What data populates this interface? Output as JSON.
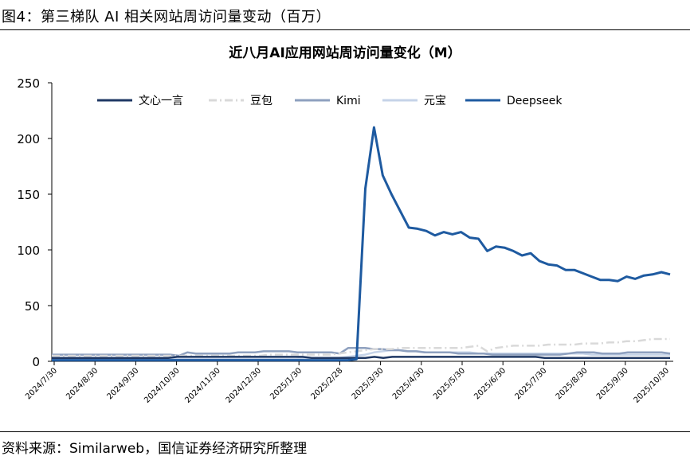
{
  "figure": {
    "title": "图4：第三梯队 AI 相关网站周访问量变动（百万）",
    "source": "资料来源：Similarweb，国信证券经济研究所整理"
  },
  "chart_data": {
    "type": "line",
    "title": "近八月AI应用网站周访问量变化（M）",
    "xlabel": "",
    "ylabel": "",
    "ylim": [
      0,
      250
    ],
    "yticks": [
      0,
      50,
      100,
      150,
      200,
      250
    ],
    "x_tick_labels": [
      "2024/7/30",
      "2024/8/30",
      "2024/9/30",
      "2024/10/30",
      "2024/11/30",
      "2024/12/30",
      "2025/1/30",
      "2025/2/28",
      "2025/3/30",
      "2025/4/30",
      "2025/5/30",
      "2025/6/30",
      "2025/7/30",
      "2025/8/30",
      "2025/9/30",
      "2025/10/30"
    ],
    "legend_position": "top",
    "grid": false,
    "series": [
      {
        "name": "文心一言",
        "color": "#1f3864",
        "dash": "solid",
        "values": [
          3,
          3,
          3,
          3,
          3,
          3,
          3,
          3,
          3,
          3,
          3,
          3,
          3,
          3,
          4,
          4,
          4,
          4,
          4,
          4,
          4,
          4,
          4,
          4,
          4,
          4,
          4,
          4,
          4,
          3,
          3,
          3,
          3,
          3,
          3,
          3,
          4,
          3,
          4,
          4,
          4,
          4,
          4,
          4,
          4,
          4,
          4,
          4,
          4,
          4,
          4,
          4,
          4,
          4,
          4,
          3,
          3,
          3,
          3,
          3,
          3,
          3,
          3,
          3,
          3,
          3,
          3,
          3,
          3,
          3
        ]
      },
      {
        "name": "豆包",
        "color": "#d9d9d9",
        "dash": "dashdot",
        "values": [
          5,
          5,
          5,
          5,
          5,
          5,
          5,
          5,
          5,
          5,
          5,
          5,
          5,
          5,
          5,
          5,
          5,
          5,
          5,
          5,
          5,
          5,
          5,
          5,
          5,
          6,
          6,
          6,
          6,
          6,
          6,
          6,
          6,
          7,
          8,
          9,
          10,
          11,
          11,
          11,
          12,
          12,
          12,
          12,
          12,
          12,
          12,
          12,
          13,
          14,
          9,
          12,
          13,
          14,
          14,
          14,
          14,
          15,
          15,
          15,
          15,
          16,
          16,
          16,
          17,
          17,
          18,
          18,
          19,
          20,
          20,
          20
        ]
      },
      {
        "name": "Kimi",
        "color": "#8ea0bf",
        "dash": "solid",
        "values": [
          6,
          6,
          6,
          6,
          6,
          6,
          6,
          6,
          6,
          6,
          6,
          6,
          6,
          6,
          6,
          5,
          8,
          7,
          7,
          7,
          7,
          7,
          8,
          8,
          8,
          9,
          9,
          9,
          9,
          8,
          8,
          8,
          8,
          8,
          7,
          12,
          12,
          12,
          11,
          11,
          10,
          10,
          9,
          9,
          8,
          8,
          8,
          8,
          7,
          7,
          7,
          7,
          6,
          6,
          6,
          6,
          6,
          6,
          6,
          6,
          6,
          7,
          8,
          8,
          8,
          7,
          7,
          7,
          8,
          8,
          8,
          8,
          8,
          7
        ]
      },
      {
        "name": "元宝",
        "color": "#c5d3e8",
        "dash": "solid",
        "values": [
          2,
          2,
          2,
          2,
          2,
          2,
          2,
          2,
          2,
          2,
          2,
          2,
          2,
          2,
          2,
          2,
          2,
          2,
          2,
          2,
          2,
          2,
          2,
          2,
          2,
          2,
          2,
          2,
          2,
          3,
          3,
          3,
          3,
          3,
          4,
          5,
          6,
          8,
          9,
          10,
          10,
          9,
          9,
          8,
          8,
          8,
          8,
          8,
          8,
          7,
          7,
          7,
          7,
          7,
          7,
          7,
          7,
          7,
          7,
          7,
          7,
          7,
          6,
          6,
          6,
          6,
          6,
          6,
          6,
          6,
          6,
          6
        ]
      },
      {
        "name": "Deepseek",
        "color": "#1e5aa0",
        "dash": "solid",
        "values": [
          1,
          1,
          1,
          1,
          1,
          1,
          1,
          1,
          1,
          1,
          1,
          1,
          1,
          1,
          1,
          1,
          1,
          1,
          1,
          1,
          1,
          1,
          1,
          1,
          1,
          1,
          1,
          1,
          1,
          1,
          1,
          1,
          1,
          1,
          1,
          2,
          155,
          210,
          167,
          150,
          135,
          120,
          119,
          117,
          113,
          116,
          114,
          116,
          111,
          110,
          99,
          103,
          102,
          99,
          95,
          97,
          90,
          87,
          86,
          82,
          82,
          79,
          76,
          73,
          73,
          72,
          76,
          74,
          77,
          78,
          80,
          78
        ]
      }
    ]
  }
}
